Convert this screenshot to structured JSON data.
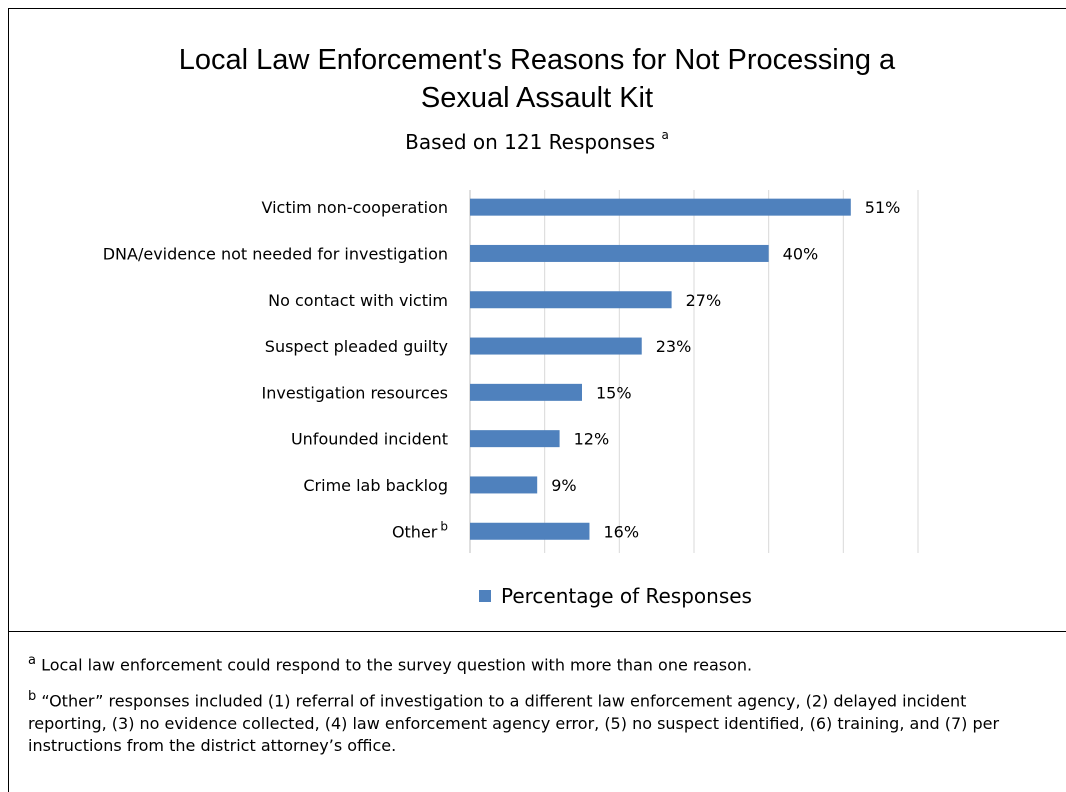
{
  "title_line1": "Local Law Enforcement's Reasons for Not Processing a",
  "title_line2": "Sexual Assault Kit",
  "subtitle": "Based on 121 Responses",
  "subtitle_marker": "a",
  "legend_label": "Percentage of Responses",
  "bar_color": "#4F81BD",
  "chart_data": {
    "type": "bar",
    "orientation": "horizontal",
    "categories": [
      "Victim non-cooperation",
      "DNA/evidence not needed for investigation",
      "No contact with victim",
      "Suspect pleaded guilty",
      "Investigation resources",
      "Unfounded incident",
      "Crime lab backlog",
      "Other"
    ],
    "category_superscripts": [
      "",
      "",
      "",
      "",
      "",
      "",
      "",
      "b"
    ],
    "series": [
      {
        "name": "Percentage of Responses",
        "values": [
          51,
          40,
          27,
          23,
          15,
          12,
          9,
          16
        ],
        "labels": [
          "51%",
          "40%",
          "27%",
          "23%",
          "15%",
          "12%",
          "9%",
          "16%"
        ]
      }
    ],
    "xlim": [
      0,
      60
    ],
    "grid": true,
    "legend_position": "bottom"
  },
  "footnotes": [
    {
      "marker": "a",
      "text": "Local law enforcement could respond to the survey question with more than one reason."
    },
    {
      "marker": "b",
      "text": "“Other” responses included (1) referral of investigation to a different law enforcement agency, (2) delayed incident reporting, (3) no evidence collected, (4) law enforcement agency error, (5) no suspect identified, (6) training, and (7) per instructions from the district attorney’s office."
    }
  ]
}
